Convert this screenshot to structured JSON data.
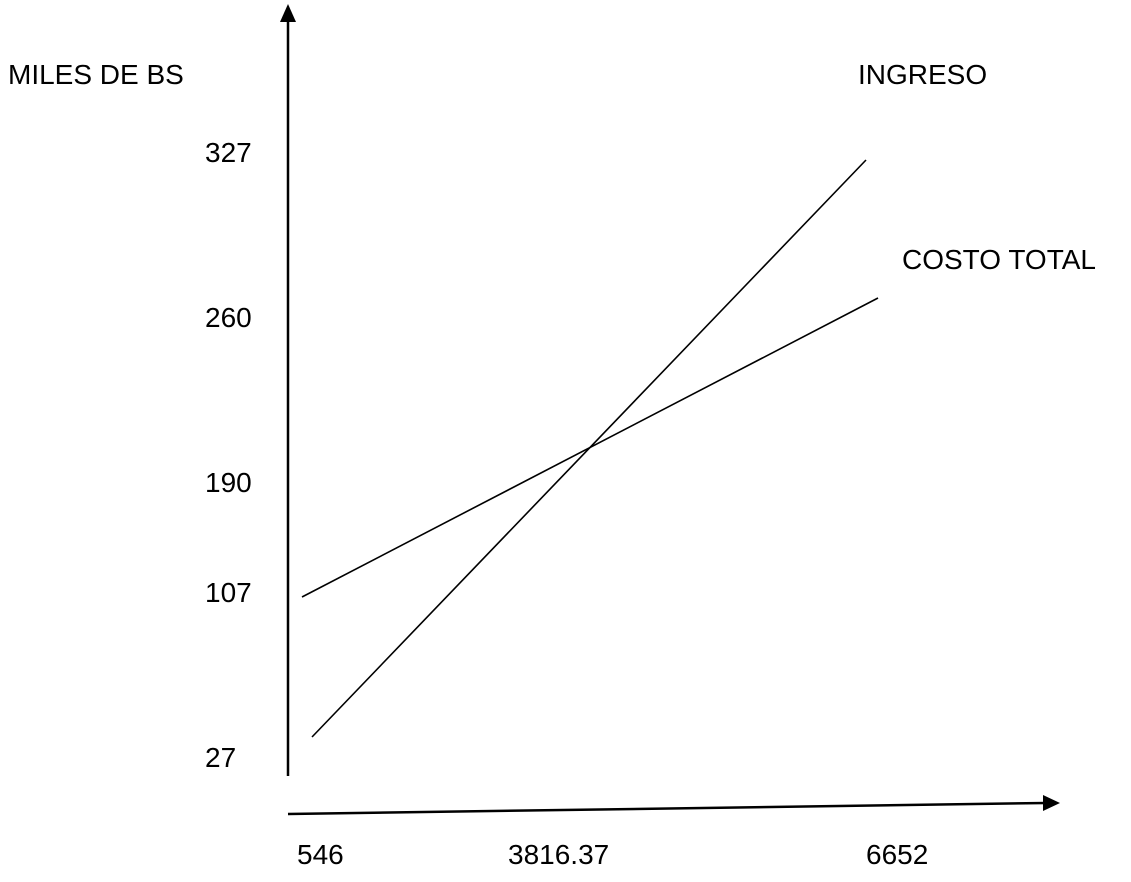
{
  "chart_data": {
    "type": "line",
    "title": "",
    "ylabel": "MILES DE BS",
    "xlabel": "",
    "x_ticks": [
      "546",
      "3816.37",
      "6652"
    ],
    "y_ticks": [
      "327",
      "260",
      "190",
      "107",
      "27"
    ],
    "series": [
      {
        "name": "INGRESO",
        "points": [
          {
            "x": 546,
            "y": 27
          },
          {
            "x": 6652,
            "y": 327
          }
        ]
      },
      {
        "name": "COSTO TOTAL",
        "points": [
          {
            "x": 546,
            "y": 107
          },
          {
            "x": 6652,
            "y": 260
          }
        ]
      }
    ],
    "grid": false,
    "legend": "none",
    "line_color": "#000000"
  }
}
